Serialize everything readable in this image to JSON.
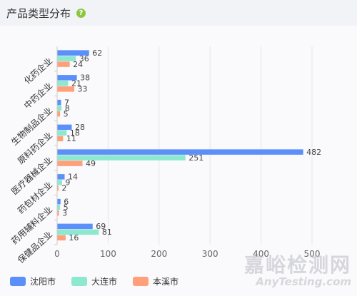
{
  "header": {
    "title": "产品类型分布",
    "help_icon": "?"
  },
  "chart_data": {
    "type": "bar",
    "orientation": "horizontal",
    "categories": [
      "化药企业",
      "中药企业",
      "生物制品企业",
      "原料药企业",
      "医疗器械企业",
      "药包材企业",
      "药用辅料企业",
      "保健品企业"
    ],
    "series": [
      {
        "name": "沈阳市",
        "color": "#5b8ff9",
        "values": [
          62,
          38,
          7,
          28,
          482,
          14,
          6,
          69
        ]
      },
      {
        "name": "大连市",
        "color": "#8de8cf",
        "values": [
          36,
          21,
          8,
          18,
          251,
          9,
          5,
          81
        ]
      },
      {
        "name": "本溪市",
        "color": "#ffa07a",
        "values": [
          24,
          33,
          5,
          11,
          49,
          2,
          3,
          16
        ]
      }
    ],
    "xlim": [
      0,
      500
    ],
    "xticks": [
      "0",
      "100",
      "200",
      "300",
      "400",
      "500"
    ],
    "grid": true,
    "legend_position": "bottom-left"
  },
  "watermark": {
    "main": "嘉峪检测网",
    "sub": "AnyTesting.com"
  }
}
